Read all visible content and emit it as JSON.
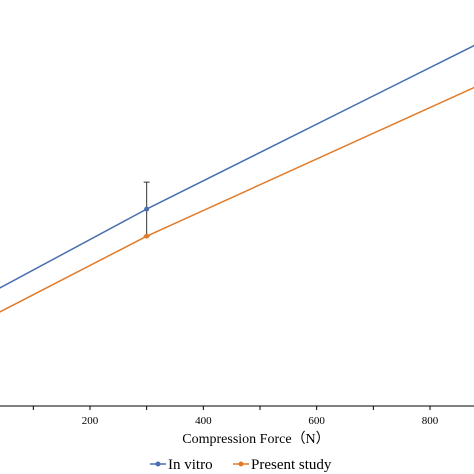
{
  "chart_data": {
    "type": "line",
    "xlabel": "Compression Force（N）",
    "x_ticks": [
      200,
      400,
      600,
      800
    ],
    "xlim": [
      -30,
      1050
    ],
    "ylim": [
      0,
      1
    ],
    "grid": false,
    "legend_position": "bottom",
    "series": [
      {
        "name": "In vitro",
        "color": "#4a6fb0",
        "x": [
          -30,
          300,
          1050
        ],
        "y": [
          0.25,
          0.51,
          1.06
        ],
        "error_bars": [
          {
            "x": 300,
            "low": 0.44,
            "high": 0.58
          }
        ]
      },
      {
        "name": "Present study",
        "color": "#e07b2a",
        "x": [
          -30,
          300,
          1050
        ],
        "y": [
          0.19,
          0.44,
          0.94
        ]
      }
    ]
  }
}
